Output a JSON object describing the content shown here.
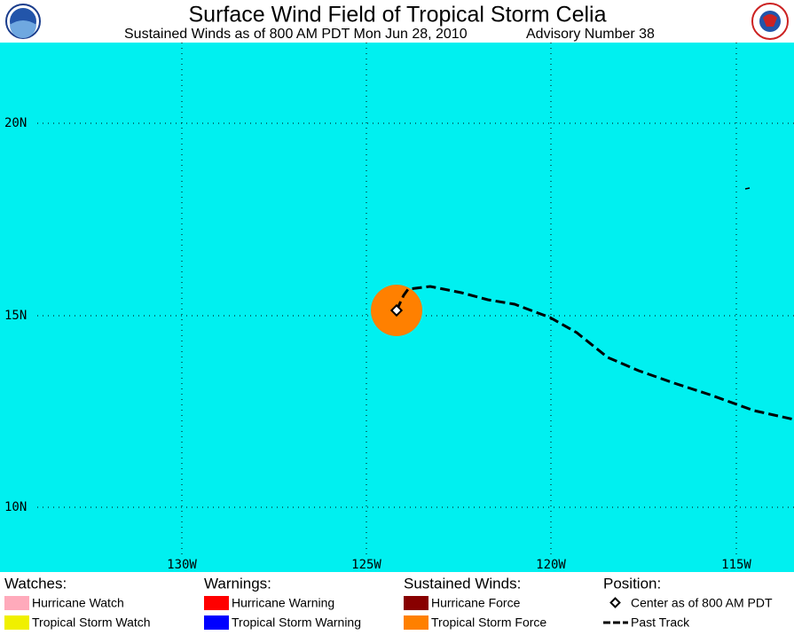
{
  "header": {
    "title": "Surface Wind Field of Tropical Storm Celia",
    "subtitle": "Sustained Winds as of 800 AM PDT Mon Jun 28, 2010",
    "advisory": "Advisory Number 38"
  },
  "map": {
    "lat_labels": [
      "20N",
      "15N",
      "10N"
    ],
    "lon_labels": [
      "130W",
      "125W",
      "120W",
      "115W"
    ]
  },
  "legend": {
    "groups": [
      {
        "heading": "Watches:",
        "items": [
          {
            "label": "Hurricane Watch",
            "color": "#ffaabb"
          },
          {
            "label": "Tropical Storm Watch",
            "color": "#f0f000"
          }
        ]
      },
      {
        "heading": "Warnings:",
        "items": [
          {
            "label": "Hurricane Warning",
            "color": "#ff0000"
          },
          {
            "label": "Tropical Storm Warning",
            "color": "#0000ff"
          }
        ]
      },
      {
        "heading": "Sustained Winds:",
        "items": [
          {
            "label": "Hurricane Force",
            "color": "#880000"
          },
          {
            "label": "Tropical Storm Force",
            "color": "#ff8000"
          }
        ]
      },
      {
        "heading": "Position:",
        "items": [
          {
            "label": "Center as of 800 AM PDT"
          },
          {
            "label": "Past Track"
          }
        ]
      }
    ]
  }
}
